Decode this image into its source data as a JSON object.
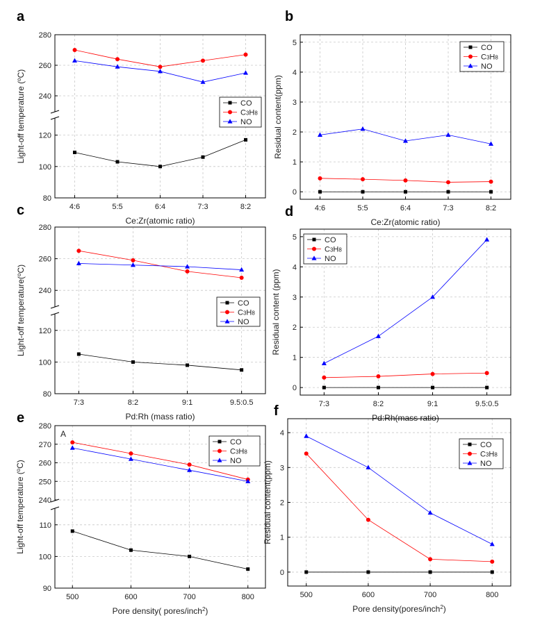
{
  "legend_labels": {
    "co": "CO",
    "c3h8_main": "C",
    "c3h8_sub": "3",
    "c3h8_h": "H",
    "c3h8_sub2": "8",
    "no": "NO"
  },
  "colors": {
    "co": "#000000",
    "c3h8": "#ff0000",
    "no": "#0000ff"
  },
  "chart_data": [
    {
      "panel": "a",
      "type": "line",
      "broken_axis": true,
      "categories": [
        "4:6",
        "5:5",
        "6:4",
        "7:3",
        "8:2"
      ],
      "xlabel": "Ce:Zr(atomic ratio)",
      "ylabel_pre": "Light-off temperature (",
      "ylabel_sup": "o",
      "ylabel_post": "C)",
      "ylim_lower": [
        80,
        130
      ],
      "ylim_upper": [
        230,
        280
      ],
      "yticks_lower": [
        80,
        100,
        120
      ],
      "yticks_upper": [
        240,
        260,
        280
      ],
      "legend_position": "center-right",
      "series": [
        {
          "key": "co",
          "name": "CO",
          "values": [
            109,
            103,
            100,
            106,
            117
          ]
        },
        {
          "key": "c3h8",
          "name": "C3H8",
          "values": [
            270,
            264,
            259,
            263,
            267
          ]
        },
        {
          "key": "no",
          "name": "NO",
          "values": [
            263,
            259,
            256,
            249,
            255
          ]
        }
      ]
    },
    {
      "panel": "b",
      "type": "line",
      "broken_axis": false,
      "categories": [
        "4:6",
        "5:5",
        "6:4",
        "7:3",
        "8:2"
      ],
      "xlabel": "Ce:Zr(atomic ratio)",
      "ylabel": "Residual content(ppm)",
      "ylim": [
        -0.25,
        5.25
      ],
      "yticks": [
        0,
        1,
        2,
        3,
        4,
        5
      ],
      "legend_position": "top-right",
      "series": [
        {
          "key": "co",
          "name": "CO",
          "values": [
            0,
            0,
            0,
            0,
            0
          ]
        },
        {
          "key": "c3h8",
          "name": "C3H8",
          "values": [
            0.45,
            0.42,
            0.38,
            0.32,
            0.34
          ]
        },
        {
          "key": "no",
          "name": "NO",
          "values": [
            1.9,
            2.1,
            1.7,
            1.9,
            1.6
          ]
        }
      ]
    },
    {
      "panel": "c",
      "type": "line",
      "broken_axis": true,
      "categories": [
        "7:3",
        "8:2",
        "9:1",
        "9.5:0.5"
      ],
      "xlabel": "Pd:Rh (mass ratio)",
      "ylabel_pre": "Light-off temperature(",
      "ylabel_sup": "o",
      "ylabel_post": "C)",
      "ylim_lower": [
        80,
        130
      ],
      "ylim_upper": [
        230,
        280
      ],
      "yticks_lower": [
        80,
        100,
        120
      ],
      "yticks_upper": [
        240,
        260,
        280
      ],
      "legend_position": "center-right",
      "series": [
        {
          "key": "co",
          "name": "CO",
          "values": [
            105,
            100,
            98,
            95
          ]
        },
        {
          "key": "c3h8",
          "name": "C3H8",
          "values": [
            265,
            259,
            252,
            248
          ]
        },
        {
          "key": "no",
          "name": "NO",
          "values": [
            257,
            256,
            255,
            253
          ]
        }
      ]
    },
    {
      "panel": "d",
      "type": "line",
      "broken_axis": false,
      "categories": [
        "7:3",
        "8:2",
        "9:1",
        "9.5:0.5"
      ],
      "xlabel": "Pd:Rh(mass ratio)",
      "ylabel": "Residual content (ppm)",
      "ylim": [
        -0.25,
        5.25
      ],
      "yticks": [
        0,
        1,
        2,
        3,
        4,
        5
      ],
      "legend_position": "top-left",
      "series": [
        {
          "key": "co",
          "name": "CO",
          "values": [
            0,
            0,
            0,
            0
          ]
        },
        {
          "key": "c3h8",
          "name": "C3H8",
          "values": [
            0.33,
            0.37,
            0.45,
            0.48
          ]
        },
        {
          "key": "no",
          "name": "NO",
          "values": [
            0.8,
            1.7,
            3.0,
            4.9
          ]
        }
      ]
    },
    {
      "panel": "e",
      "type": "line",
      "broken_axis": true,
      "x": [
        500,
        600,
        700,
        800
      ],
      "xticks": [
        500,
        600,
        700,
        800
      ],
      "xlim": [
        470,
        830
      ],
      "xlabel_pre": "Pore density( pores/inch",
      "xlabel_sup": "2",
      "xlabel_post": ")",
      "ylabel_pre": "Light-off temperature (",
      "ylabel_sup": "o",
      "ylabel_post": "C)",
      "annotation": "A",
      "ylim_lower": [
        90,
        115
      ],
      "ylim_upper": [
        240,
        280
      ],
      "yticks_lower": [
        90,
        100,
        110
      ],
      "yticks_upper": [
        240,
        250,
        260,
        270,
        280
      ],
      "legend_position": "top-right",
      "series": [
        {
          "key": "co",
          "name": "CO",
          "values": [
            108,
            102,
            100,
            96
          ]
        },
        {
          "key": "c3h8",
          "name": "C3H8",
          "values": [
            271,
            265,
            259,
            251
          ]
        },
        {
          "key": "no",
          "name": "NO",
          "values": [
            268,
            262,
            256,
            250
          ]
        }
      ]
    },
    {
      "panel": "f",
      "type": "line",
      "broken_axis": false,
      "x": [
        500,
        600,
        700,
        800
      ],
      "xticks": [
        500,
        600,
        700,
        800
      ],
      "xlim": [
        470,
        830
      ],
      "xlabel_pre": "Pore density(pores/inch",
      "xlabel_sup": "2",
      "xlabel_post": ")",
      "ylabel": "Residual content(ppm)",
      "ylim": [
        -0.4,
        4.4
      ],
      "yticks": [
        0,
        1,
        2,
        3,
        4
      ],
      "legend_position": "top-right",
      "series": [
        {
          "key": "co",
          "name": "CO",
          "values": [
            0,
            0,
            0,
            0
          ]
        },
        {
          "key": "c3h8",
          "name": "C3H8",
          "values": [
            3.4,
            1.5,
            0.37,
            0.3
          ]
        },
        {
          "key": "no",
          "name": "NO",
          "values": [
            3.9,
            3.0,
            1.7,
            0.8
          ]
        }
      ]
    }
  ]
}
